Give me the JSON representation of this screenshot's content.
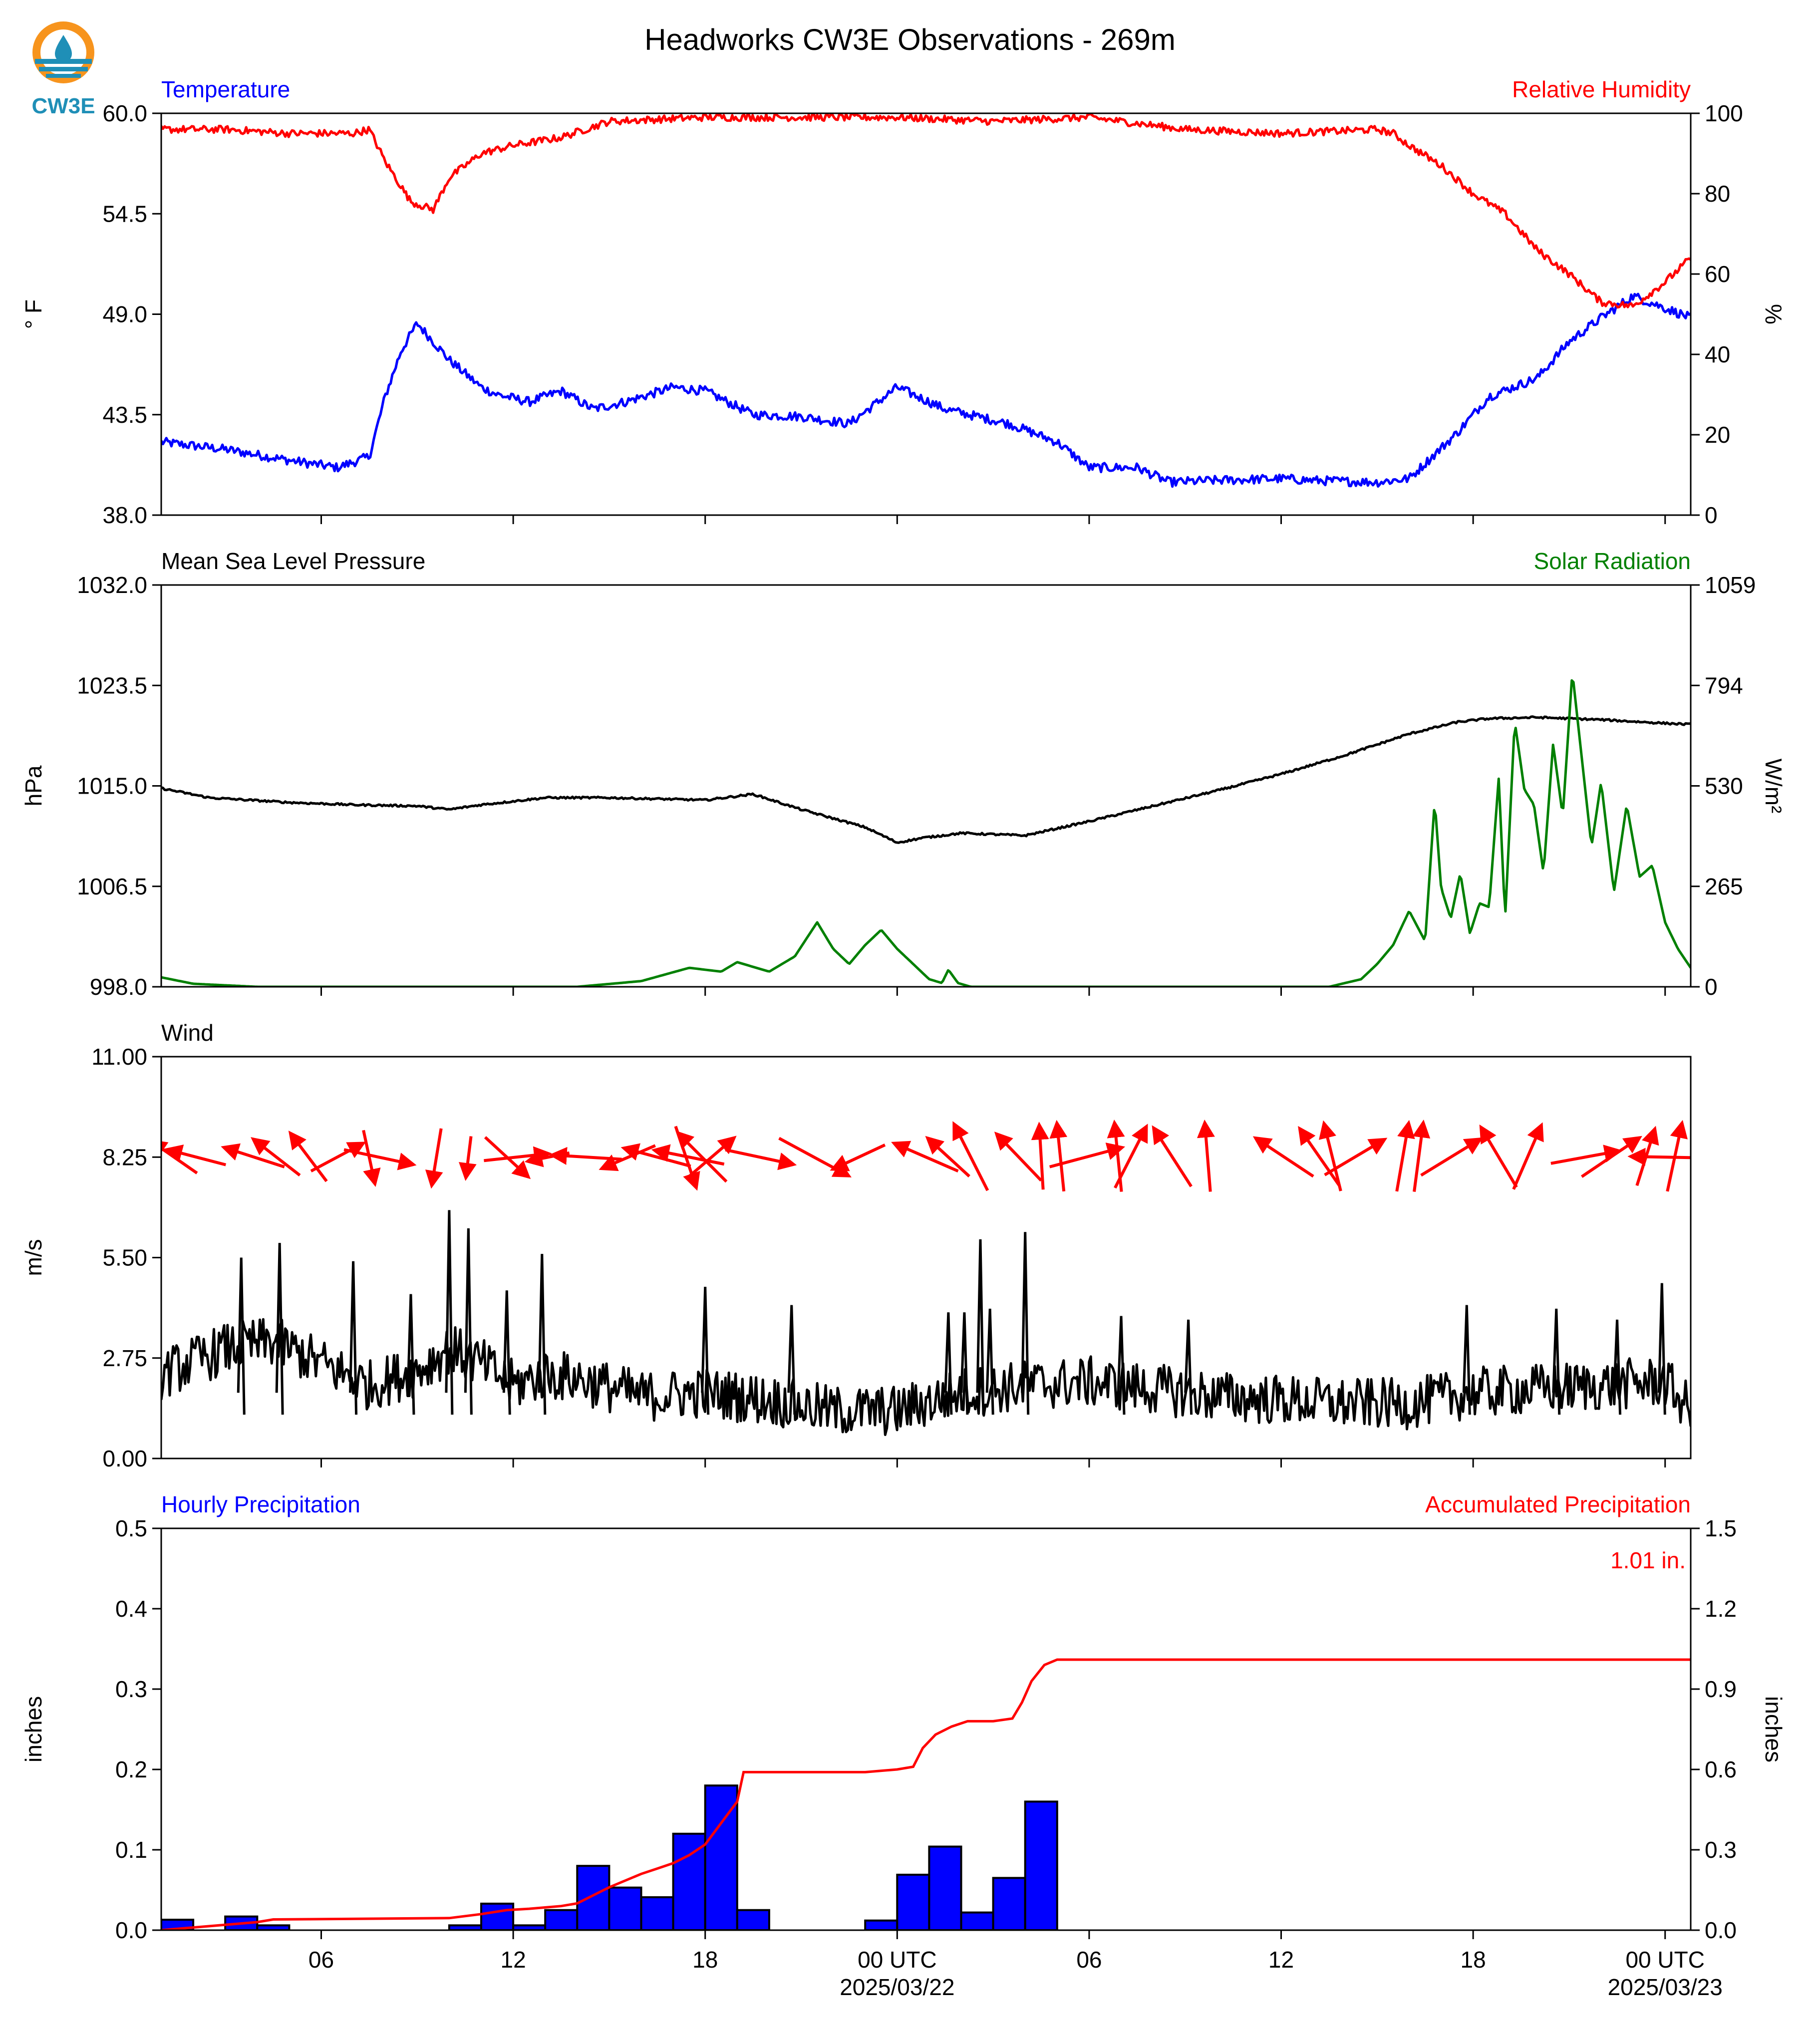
{
  "figure": {
    "title": "Headworks CW3E Observations - 269m",
    "logo_text": "CW3E"
  },
  "colors": {
    "temperature": "#0000ff",
    "humidity": "#ff0000",
    "pressure": "#000000",
    "solar": "#008000",
    "wind_speed": "#000000",
    "wind_arrows": "#ff0000",
    "hourly_bars": "#0000ff",
    "accumulated": "#ff0000"
  },
  "time_axis": {
    "range_hours": [
      -23,
      24.8
    ],
    "ticks": [
      {
        "h": -18,
        "label": "06"
      },
      {
        "h": -12,
        "label": "12"
      },
      {
        "h": -6,
        "label": "18"
      },
      {
        "h": 0,
        "label": "00 UTC",
        "date": "2025/03/22"
      },
      {
        "h": 6,
        "label": "06"
      },
      {
        "h": 12,
        "label": "12"
      },
      {
        "h": 18,
        "label": "18"
      },
      {
        "h": 24,
        "label": "00 UTC",
        "date": "2025/03/23"
      }
    ]
  },
  "chart_data": [
    {
      "id": "temp_rh",
      "type": "line",
      "left_label": "Temperature",
      "right_label": "Relative Humidity",
      "ylabel": "° F",
      "y2label": "%",
      "ylim": [
        38.0,
        60.0
      ],
      "yticks": [
        "38.0",
        "43.5",
        "49.0",
        "54.5",
        "60.0"
      ],
      "y2lim": [
        0,
        100
      ],
      "y2ticks": [
        "0",
        "20",
        "40",
        "60",
        "80",
        "100"
      ],
      "series": [
        {
          "key": "temperature",
          "axis": "left",
          "noise": 0.25,
          "x": [
            -23,
            -21,
            -19,
            -17.5,
            -16.5,
            -16,
            -15.5,
            -15,
            -14,
            -13,
            -12.5,
            -11.5,
            -10.5,
            -9.5,
            -8.5,
            -7,
            -6,
            -4.5,
            -3,
            -1.5,
            0,
            1.5,
            3.5,
            5,
            6,
            7.5,
            8.5,
            10,
            12,
            13,
            15,
            16,
            17.5,
            18.5,
            20,
            21,
            22,
            23,
            24.8
          ],
          "y": [
            42.0,
            41.6,
            41.0,
            40.6,
            41.2,
            44.5,
            47.0,
            48.5,
            46.5,
            45.0,
            44.6,
            44.2,
            44.8,
            43.8,
            44.2,
            45.0,
            44.8,
            43.5,
            43.4,
            43.0,
            45.0,
            43.8,
            43.0,
            42.0,
            40.6,
            40.6,
            39.8,
            39.9,
            40.0,
            39.9,
            39.8,
            40.0,
            42.5,
            44.5,
            45.5,
            47.5,
            48.8,
            50.0,
            48.8
          ]
        },
        {
          "key": "humidity",
          "axis": "right",
          "noise": 0.9,
          "x": [
            -23,
            -21,
            -19,
            -17,
            -16.5,
            -16,
            -15.2,
            -14.5,
            -14,
            -13,
            -12,
            -10.5,
            -9,
            -6,
            -3,
            0,
            3,
            6,
            9,
            12,
            15,
            15.5,
            16,
            17,
            18,
            19,
            20,
            21,
            22,
            23,
            24,
            24.8
          ],
          "y": [
            96,
            96,
            95,
            95,
            96,
            88,
            78,
            76,
            84,
            90,
            92,
            94,
            98,
            99,
            99,
            99,
            98,
            99,
            96,
            95,
            96,
            95,
            92,
            87,
            80,
            75,
            66,
            60,
            53,
            52,
            58,
            64
          ]
        }
      ]
    },
    {
      "id": "pressure_solar",
      "type": "line",
      "left_label": "Mean Sea Level Pressure",
      "right_label": "Solar Radiation",
      "ylabel": "hPa",
      "y2label": "W/m²",
      "ylim": [
        998.0,
        1032.0
      ],
      "yticks": [
        "998.0",
        "1006.5",
        "1015.0",
        "1023.5",
        "1032.0"
      ],
      "y2lim": [
        0,
        1059
      ],
      "y2ticks": [
        "0",
        "265",
        "530",
        "794",
        "1059"
      ],
      "series": [
        {
          "key": "pressure",
          "axis": "left",
          "noise": 0.08,
          "x": [
            -23,
            -21.5,
            -19,
            -17,
            -15,
            -14,
            -13,
            -11,
            -9,
            -6,
            -4.5,
            -3,
            -1,
            0,
            0.8,
            2,
            4,
            6,
            8,
            10,
            12,
            14,
            16,
            17.5,
            18.5,
            20,
            22,
            24,
            24.8
          ],
          "y": [
            1014.8,
            1014.0,
            1013.6,
            1013.4,
            1013.3,
            1013.0,
            1013.4,
            1014.0,
            1014.0,
            1013.8,
            1014.3,
            1013.0,
            1011.5,
            1010.2,
            1010.6,
            1011.0,
            1010.8,
            1012.0,
            1013.3,
            1014.6,
            1016.0,
            1017.6,
            1019.4,
            1020.4,
            1020.7,
            1020.8,
            1020.6,
            1020.3,
            1020.2
          ]
        },
        {
          "key": "solar",
          "axis": "right",
          "noise": 0,
          "x": [
            -23,
            -22,
            -20,
            -15,
            -10,
            -8,
            -6.5,
            -5.5,
            -5,
            -4,
            -3.2,
            -2.5,
            -2,
            -1.5,
            -1,
            -0.5,
            0,
            0.5,
            1,
            1.4,
            1.6,
            1.9,
            2.3,
            4,
            8,
            12,
            13.5,
            14.5,
            15,
            15.5,
            16,
            16.5,
            16.8,
            17,
            17.3,
            17.6,
            17.9,
            18.2,
            18.5,
            18.8,
            19,
            19.3,
            19.6,
            19.9,
            20.2,
            20.5,
            20.8,
            21.1,
            21.4,
            21.7,
            22,
            22.4,
            22.8,
            23.2,
            23.6,
            24,
            24.4,
            24.8
          ],
          "y": [
            25,
            8,
            0,
            0,
            0,
            15,
            50,
            40,
            65,
            40,
            80,
            170,
            100,
            60,
            110,
            150,
            100,
            60,
            20,
            10,
            45,
            10,
            0,
            0,
            0,
            0,
            0,
            20,
            60,
            110,
            200,
            120,
            490,
            260,
            180,
            300,
            140,
            220,
            210,
            550,
            180,
            700,
            520,
            480,
            300,
            640,
            450,
            830,
            600,
            370,
            540,
            250,
            480,
            290,
            320,
            170,
            100,
            50
          ]
        }
      ]
    },
    {
      "id": "wind",
      "type": "line",
      "left_label": "Wind",
      "ylabel": "m/s",
      "ylim": [
        0.0,
        11.0
      ],
      "yticks": [
        "0.00",
        "2.75",
        "5.50",
        "8.25",
        "11.00"
      ],
      "series": [
        {
          "key": "wind_speed",
          "axis": "left",
          "noise": 0.7,
          "x": [
            -23,
            -21,
            -19.5,
            -18,
            -16.5,
            -15,
            -14,
            -13,
            -12,
            -11,
            -10,
            -8,
            -6,
            -4,
            -2,
            0,
            2,
            4,
            6,
            8,
            10,
            12,
            14,
            16,
            18,
            20,
            22,
            24,
            24.8
          ],
          "y": [
            2.3,
            3.0,
            3.2,
            2.6,
            2.0,
            2.4,
            3.0,
            2.6,
            2.0,
            2.3,
            2.2,
            1.7,
            1.8,
            1.6,
            1.3,
            1.3,
            1.8,
            2.0,
            2.1,
            1.9,
            1.7,
            1.6,
            1.5,
            1.5,
            1.8,
            1.9,
            2.0,
            2.1,
            1.3
          ]
        },
        {
          "key": "wind_spikes",
          "type": "spikes",
          "x": [
            -20.5,
            -19.3,
            -17,
            -15.2,
            -14,
            -13.4,
            -12.2,
            -11.1,
            -6,
            -3.3,
            1.6,
            2.1,
            2.6,
            2.9,
            4,
            7,
            9.1,
            17.8,
            20.6,
            22.5,
            23.9
          ],
          "y": [
            5.5,
            5.9,
            5.4,
            4.5,
            6.8,
            6.3,
            4.6,
            5.6,
            4.7,
            4.2,
            4.0,
            4.0,
            6.0,
            4.1,
            6.2,
            3.9,
            3.8,
            4.2,
            4.1,
            3.8,
            4.8
          ]
        }
      ],
      "arrows": [
        {
          "h": -22.6,
          "s": 0.64,
          "u": -0.72,
          "v": 0.5
        },
        {
          "h": -21.9,
          "s": 0.7,
          "u": -0.84,
          "v": 0.22
        },
        {
          "h": -20.1,
          "s": 0.7,
          "u": -0.87,
          "v": 0.28
        },
        {
          "h": -19.4,
          "s": 0.7,
          "u": -0.67,
          "v": 0.52
        },
        {
          "h": -18.4,
          "s": 0.7,
          "u": -0.52,
          "v": 0.69
        },
        {
          "h": -17.5,
          "s": 0.7,
          "u": 0.75,
          "v": 0.4
        },
        {
          "h": -16.5,
          "s": 0.55,
          "u": 0.21,
          "v": -0.98
        },
        {
          "h": -16.2,
          "s": 0.75,
          "u": 0.93,
          "v": -0.2
        },
        {
          "h": -14.4,
          "s": 0.63,
          "u": -0.15,
          "v": -0.91
        },
        {
          "h": -13.4,
          "s": 0.58,
          "u": -0.09,
          "v": -0.72
        },
        {
          "h": -12.2,
          "s": 0.7,
          "u": 0.62,
          "v": -0.57
        },
        {
          "h": -11.9,
          "s": 0.7,
          "u": 0.93,
          "v": 0.1
        },
        {
          "h": -10.9,
          "s": 0.7,
          "u": -0.6,
          "v": -0.12
        },
        {
          "h": -9.7,
          "s": 0.7,
          "u": -1.0,
          "v": 0.06
        },
        {
          "h": -8.4,
          "s": 0.7,
          "u": -0.77,
          "v": -0.33
        },
        {
          "h": -7.5,
          "s": 0.7,
          "u": -0.96,
          "v": 0.26
        },
        {
          "h": -6.5,
          "s": 0.7,
          "u": -1.0,
          "v": 0.2
        },
        {
          "h": -6.1,
          "s": 0.7,
          "u": -0.7,
          "v": 0.7
        },
        {
          "h": -6.6,
          "s": 0.65,
          "u": 0.32,
          "v": -0.95
        },
        {
          "h": -5.8,
          "s": 0.65,
          "u": 0.7,
          "v": 0.6
        },
        {
          "h": -4.3,
          "s": 0.7,
          "u": 0.98,
          "v": -0.21
        },
        {
          "h": -2.6,
          "s": 0.7,
          "u": 1.0,
          "v": -0.54
        },
        {
          "h": -1.2,
          "s": 0.7,
          "u": -0.75,
          "v": -0.35
        },
        {
          "h": 0.9,
          "s": 0.7,
          "u": -0.92,
          "v": 0.4
        },
        {
          "h": 1.6,
          "s": 0.7,
          "u": -0.6,
          "v": 0.55
        },
        {
          "h": 2.3,
          "s": 0.75,
          "u": -0.45,
          "v": 0.89
        },
        {
          "h": 3.8,
          "s": 0.65,
          "u": -0.69,
          "v": 0.72
        },
        {
          "h": 4.5,
          "s": 0.65,
          "u": -0.06,
          "v": 1.0
        },
        {
          "h": 5.1,
          "s": 0.7,
          "u": -0.1,
          "v": 0.98
        },
        {
          "h": 5.9,
          "s": 0.75,
          "u": 0.97,
          "v": 0.26
        },
        {
          "h": 6.9,
          "s": 0.7,
          "u": -0.1,
          "v": 0.99
        },
        {
          "h": 7.3,
          "s": 0.7,
          "u": 0.45,
          "v": 0.88
        },
        {
          "h": 8.6,
          "s": 0.7,
          "u": -0.54,
          "v": 0.84
        },
        {
          "h": 9.7,
          "s": 0.7,
          "u": -0.08,
          "v": 0.99
        },
        {
          "h": 12.1,
          "s": 0.7,
          "u": -0.83,
          "v": 0.55
        },
        {
          "h": 13.2,
          "s": 0.7,
          "u": -0.57,
          "v": 0.82
        },
        {
          "h": 13.6,
          "s": 0.7,
          "u": -0.24,
          "v": 0.97
        },
        {
          "h": 14.3,
          "s": 0.7,
          "u": 0.86,
          "v": 0.51
        },
        {
          "h": 15.8,
          "s": 0.7,
          "u": 0.17,
          "v": 0.98
        },
        {
          "h": 16.3,
          "s": 0.7,
          "u": 0.13,
          "v": 0.99
        },
        {
          "h": 17.3,
          "s": 0.7,
          "u": 0.85,
          "v": 0.52
        },
        {
          "h": 18.8,
          "s": 0.7,
          "u": -0.51,
          "v": 0.86
        },
        {
          "h": 19.7,
          "s": 0.7,
          "u": 0.4,
          "v": 0.92
        },
        {
          "h": 21.5,
          "s": 0.7,
          "u": 0.98,
          "v": 0.18
        },
        {
          "h": 22.3,
          "s": 0.7,
          "u": 0.83,
          "v": 0.56
        },
        {
          "h": 24.0,
          "s": 0.7,
          "u": -0.99,
          "v": 0.02
        },
        {
          "h": 24.3,
          "s": 0.7,
          "u": 0.21,
          "v": 0.98
        },
        {
          "h": 23.4,
          "s": 0.6,
          "u": 0.3,
          "v": 0.95
        }
      ]
    },
    {
      "id": "precip",
      "type": "bar",
      "left_label": "Hourly Precipitation",
      "right_label": "Accumulated Precipitation",
      "annotation": "1.01 in.",
      "ylabel": "inches",
      "y2label": "inches",
      "ylim": [
        0,
        0.5
      ],
      "yticks": [
        "0.0",
        "0.1",
        "0.2",
        "0.3",
        "0.4",
        "0.5"
      ],
      "y2lim": [
        0,
        1.5
      ],
      "y2ticks": [
        "0.0",
        "0.3",
        "0.6",
        "0.9",
        "1.2",
        "1.5"
      ],
      "bars": [
        {
          "h": -22.5,
          "v": 0.013
        },
        {
          "h": -20.5,
          "v": 0.017
        },
        {
          "h": -19.5,
          "v": 0.006
        },
        {
          "h": -13.5,
          "v": 0.006
        },
        {
          "h": -12.5,
          "v": 0.033
        },
        {
          "h": -11.5,
          "v": 0.006
        },
        {
          "h": -10.5,
          "v": 0.025
        },
        {
          "h": -9.5,
          "v": 0.08
        },
        {
          "h": -8.5,
          "v": 0.053
        },
        {
          "h": -7.5,
          "v": 0.041
        },
        {
          "h": -6.5,
          "v": 0.12
        },
        {
          "h": -5.5,
          "v": 0.18
        },
        {
          "h": -4.5,
          "v": 0.025
        },
        {
          "h": -0.5,
          "v": 0.012
        },
        {
          "h": 0.5,
          "v": 0.069
        },
        {
          "h": 1.5,
          "v": 0.104
        },
        {
          "h": 2.5,
          "v": 0.022
        },
        {
          "h": 3.5,
          "v": 0.065
        },
        {
          "h": 4.5,
          "v": 0.16
        }
      ],
      "accumulated": {
        "x": [
          -23,
          -22,
          -21,
          -20,
          -19.5,
          -14,
          -13,
          -12.2,
          -11.5,
          -10.5,
          -10,
          -9.5,
          -9,
          -8,
          -7.5,
          -7,
          -6.5,
          -6,
          -5.5,
          -5,
          -4.8,
          -3,
          -1,
          0,
          0.5,
          0.8,
          1.2,
          1.7,
          2.2,
          3,
          3.6,
          3.9,
          4.2,
          4.6,
          5.0,
          6,
          12,
          18,
          24,
          24.8
        ],
        "y": [
          0.0,
          0.01,
          0.02,
          0.03,
          0.04,
          0.045,
          0.06,
          0.075,
          0.08,
          0.09,
          0.1,
          0.13,
          0.16,
          0.21,
          0.23,
          0.25,
          0.28,
          0.32,
          0.4,
          0.48,
          0.59,
          0.59,
          0.59,
          0.6,
          0.61,
          0.68,
          0.73,
          0.76,
          0.78,
          0.78,
          0.79,
          0.85,
          0.93,
          0.99,
          1.01,
          1.01,
          1.01,
          1.01,
          1.01,
          1.01
        ]
      }
    }
  ]
}
